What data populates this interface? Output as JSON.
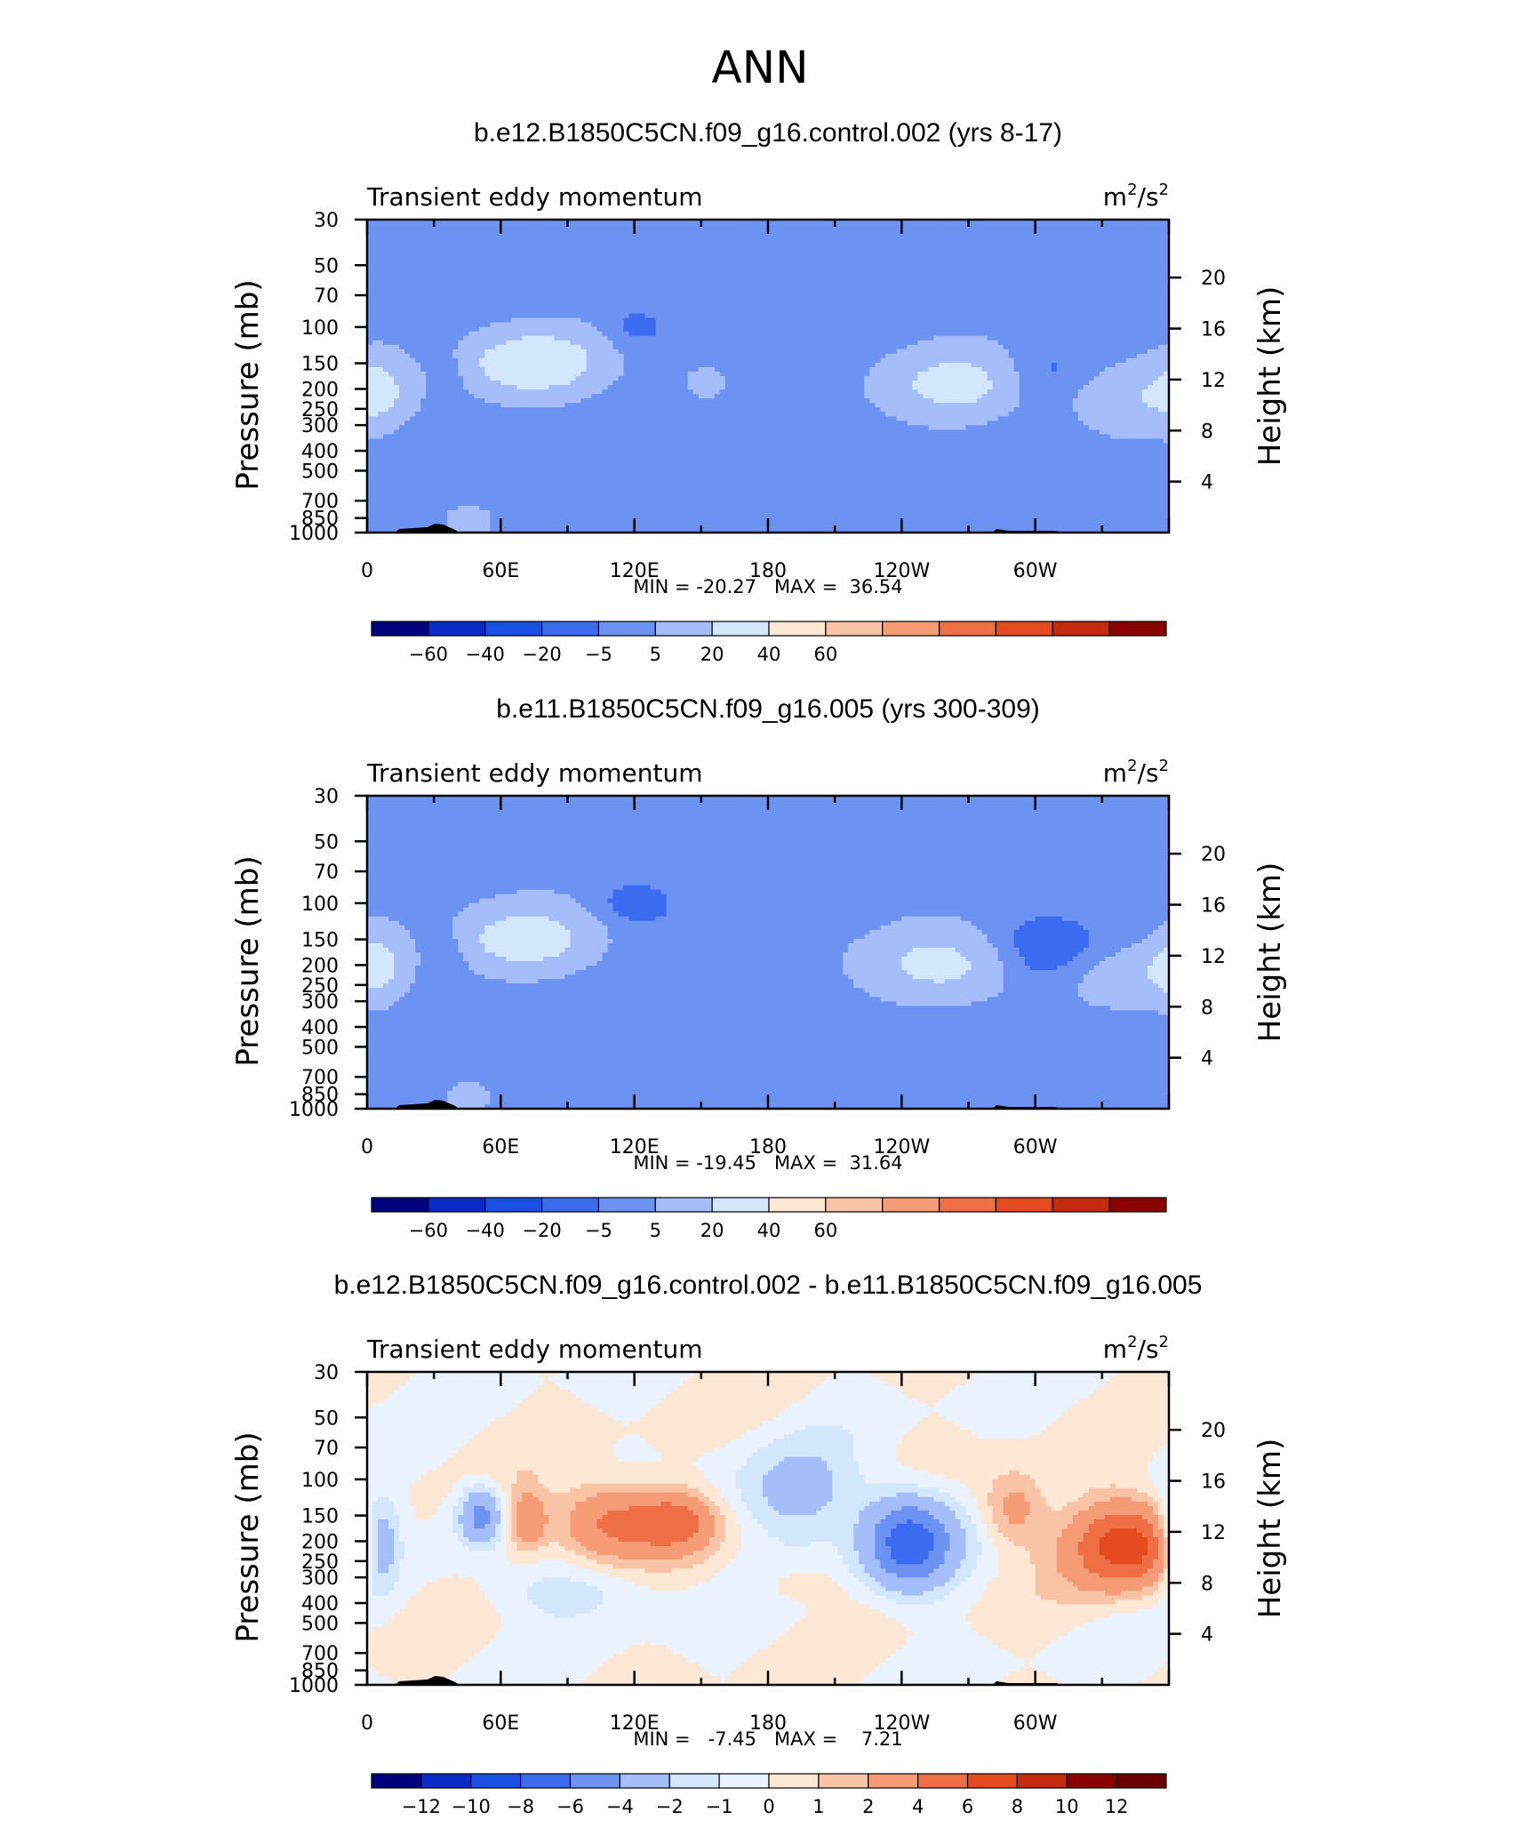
{
  "page": {
    "title": "ANN"
  },
  "chart_data": [
    {
      "type": "heatmap",
      "title": "b.e12.B1850C5CN.f09_g16.control.002 (yrs 8-17)",
      "variable_label": "Transient eddy momentum",
      "units_base": "m",
      "units_exp": "2",
      "units_sep": "/s",
      "units_exp2": "2",
      "ylabel": "Pressure (mb)",
      "y2label": "Height (km)",
      "x_ticks": [
        "0",
        "60E",
        "120E",
        "180",
        "120W",
        "60W"
      ],
      "y_ticks": [
        "30",
        "50",
        "70",
        "100",
        "150",
        "200",
        "250",
        "300",
        "400",
        "500",
        "700",
        "850",
        "1000"
      ],
      "y2_ticks": [
        "20",
        "16",
        "12",
        "8",
        "4"
      ],
      "stats_text": "MIN = -20.27   MAX =  36.54",
      "min": -20.27,
      "max": 36.54,
      "colorbar_labels": [
        "-60",
        "-40",
        "-20",
        "-5",
        "5",
        "20",
        "40",
        "60"
      ],
      "features": [
        {
          "lon": 75,
          "p": 150,
          "v": 36,
          "slon": 22,
          "slogp": 0.11
        },
        {
          "lon": 5,
          "p": 200,
          "v": 18,
          "slon": 9,
          "slogp": 0.13
        },
        {
          "lon": 268,
          "p": 190,
          "v": 28,
          "slon": 24,
          "slogp": 0.12
        },
        {
          "lon": 335,
          "p": 215,
          "v": 20,
          "slon": 28,
          "slogp": 0.11
        },
        {
          "lon": 305,
          "p": 190,
          "v": -20,
          "slon": 18,
          "slogp": 0.12
        },
        {
          "lon": 120,
          "p": 100,
          "v": -9,
          "slon": 10,
          "slogp": 0.07
        },
        {
          "lon": 45,
          "p": 900,
          "v": 16,
          "slon": 6,
          "slogp": 0.05
        },
        {
          "lon": 150,
          "p": 180,
          "v": 7,
          "slon": 12,
          "slogp": 0.1
        },
        {
          "lon": 37,
          "p": 170,
          "v": -7,
          "slon": 7,
          "slogp": 0.1
        }
      ]
    },
    {
      "type": "heatmap",
      "title": "b.e11.B1850C5CN.f09_g16.005 (yrs 300-309)",
      "variable_label": "Transient eddy momentum",
      "units_base": "m",
      "units_exp": "2",
      "units_sep": "/s",
      "units_exp2": "2",
      "ylabel": "Pressure (mb)",
      "y2label": "Height (km)",
      "x_ticks": [
        "0",
        "60E",
        "120E",
        "180",
        "120W",
        "60W"
      ],
      "y_ticks": [
        "30",
        "50",
        "70",
        "100",
        "150",
        "200",
        "250",
        "300",
        "400",
        "500",
        "700",
        "850",
        "1000"
      ],
      "y2_ticks": [
        "20",
        "16",
        "12",
        "8",
        "4"
      ],
      "stats_text": "MIN = -19.45   MAX =  31.64",
      "min": -19.45,
      "max": 31.64,
      "colorbar_labels": [
        "-60",
        "-40",
        "-20",
        "-5",
        "5",
        "20",
        "40",
        "60"
      ],
      "features": [
        {
          "lon": 72,
          "p": 150,
          "v": 31,
          "slon": 22,
          "slogp": 0.11
        },
        {
          "lon": 4,
          "p": 200,
          "v": 22,
          "slon": 9,
          "slogp": 0.13
        },
        {
          "lon": 262,
          "p": 200,
          "v": 27,
          "slon": 26,
          "slogp": 0.12
        },
        {
          "lon": 340,
          "p": 220,
          "v": 15,
          "slon": 24,
          "slogp": 0.1
        },
        {
          "lon": 303,
          "p": 180,
          "v": -19,
          "slon": 20,
          "slogp": 0.12
        },
        {
          "lon": 120,
          "p": 100,
          "v": -11,
          "slon": 11,
          "slogp": 0.07
        },
        {
          "lon": 46,
          "p": 900,
          "v": 15,
          "slon": 6,
          "slogp": 0.05
        },
        {
          "lon": 37,
          "p": 170,
          "v": -7,
          "slon": 7,
          "slogp": 0.1
        }
      ]
    },
    {
      "type": "heatmap",
      "title": "b.e12.B1850C5CN.f09_g16.control.002 - b.e11.B1850C5CN.f09_g16.005",
      "variable_label": "Transient eddy momentum",
      "units_base": "m",
      "units_exp": "2",
      "units_sep": "/s",
      "units_exp2": "2",
      "ylabel": "Pressure (mb)",
      "y2label": "Height (km)",
      "x_ticks": [
        "0",
        "60E",
        "120E",
        "180",
        "120W",
        "60W"
      ],
      "y_ticks": [
        "30",
        "50",
        "70",
        "100",
        "150",
        "200",
        "250",
        "300",
        "400",
        "500",
        "700",
        "850",
        "1000"
      ],
      "y2_ticks": [
        "20",
        "16",
        "12",
        "8",
        "4"
      ],
      "stats_text": "MIN =   -7.45   MAX =    7.21",
      "min": -7.45,
      "max": 7.21,
      "colorbar_labels": [
        "-12",
        "-10",
        "-8",
        "-6",
        "-4",
        "-2",
        "-1",
        "0",
        "1",
        "2",
        "4",
        "6",
        "8",
        "10",
        "12"
      ],
      "features": [
        {
          "lon": 243,
          "p": 200,
          "v": -7.4,
          "slon": 14,
          "slogp": 0.16
        },
        {
          "lon": 5,
          "p": 200,
          "v": -5,
          "slon": 7,
          "slogp": 0.16
        },
        {
          "lon": 51,
          "p": 150,
          "v": -5,
          "slon": 7,
          "slogp": 0.1
        },
        {
          "lon": 110,
          "p": 160,
          "v": 5,
          "slon": 18,
          "slogp": 0.13
        },
        {
          "lon": 140,
          "p": 160,
          "v": 4,
          "slon": 12,
          "slogp": 0.1
        },
        {
          "lon": 72,
          "p": 160,
          "v": 3.5,
          "slon": 6,
          "slogp": 0.1
        },
        {
          "lon": 342,
          "p": 210,
          "v": 7.2,
          "slon": 18,
          "slogp": 0.15
        },
        {
          "lon": 290,
          "p": 140,
          "v": 3,
          "slon": 10,
          "slogp": 0.13
        },
        {
          "lon": 195,
          "p": 120,
          "v": -2.5,
          "slon": 22,
          "slogp": 0.16
        },
        {
          "lon": 90,
          "p": 350,
          "v": -1.5,
          "slon": 30,
          "slogp": 0.1
        },
        {
          "lon": 195,
          "p": 330,
          "v": 1.6,
          "slon": 10,
          "slogp": 0.05
        }
      ]
    }
  ]
}
